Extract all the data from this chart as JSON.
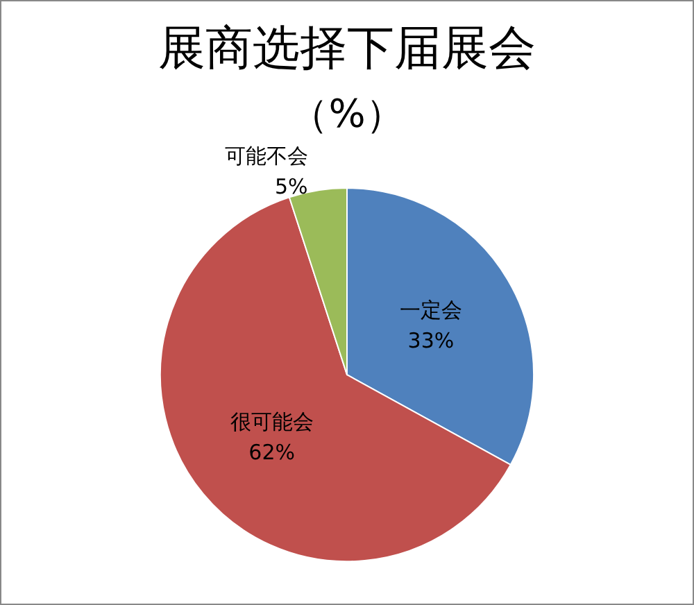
{
  "chart_data": {
    "type": "pie",
    "title": "展商选择下届展会",
    "subtitle": "（%）",
    "categories": [
      "一定会",
      "很可能会",
      "可能不会"
    ],
    "values": [
      33,
      62,
      5
    ],
    "value_labels": [
      "33%",
      "62%",
      "5%"
    ],
    "colors": [
      "#4f81bd",
      "#c0504d",
      "#9bbb59"
    ],
    "legend": false
  }
}
